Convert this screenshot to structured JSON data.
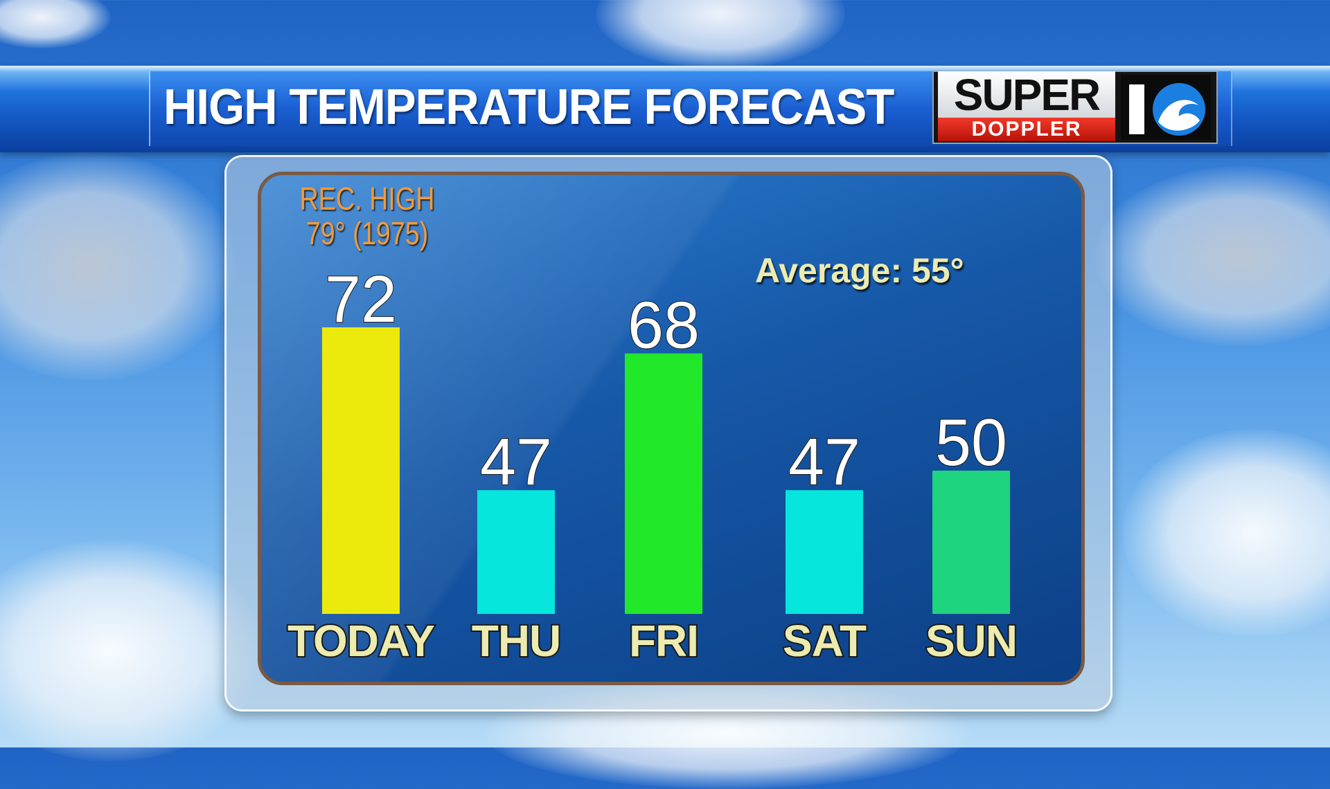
{
  "header": {
    "title": "HIGH TEMPERATURE FORECAST",
    "logo_super": "SUPER",
    "logo_doppler": "DOPPLER",
    "logo_number": "10"
  },
  "annotations": {
    "record_line1": "REC. HIGH",
    "record_line2": "79° (1975)",
    "average": "Average: 55°"
  },
  "colors": {
    "today": "#ebea0c",
    "thu": "#06e6dc",
    "fri": "#22e82a",
    "sat": "#06e6dc",
    "sun": "#1fd47e",
    "record": "#f29a3a",
    "label": "#ecebb0"
  },
  "chart_data": {
    "type": "bar",
    "title": "HIGH TEMPERATURE FORECAST",
    "categories": [
      "TODAY",
      "THU",
      "FRI",
      "SAT",
      "SUN"
    ],
    "values": [
      72,
      47,
      68,
      47,
      50
    ],
    "colors": [
      "#ebea0c",
      "#06e6dc",
      "#22e82a",
      "#06e6dc",
      "#1fd47e"
    ],
    "annotations": [
      "REC. HIGH 79° (1975)",
      "Average: 55°"
    ],
    "ylim": [
      28,
      85
    ],
    "grid": false,
    "legend": "none"
  }
}
